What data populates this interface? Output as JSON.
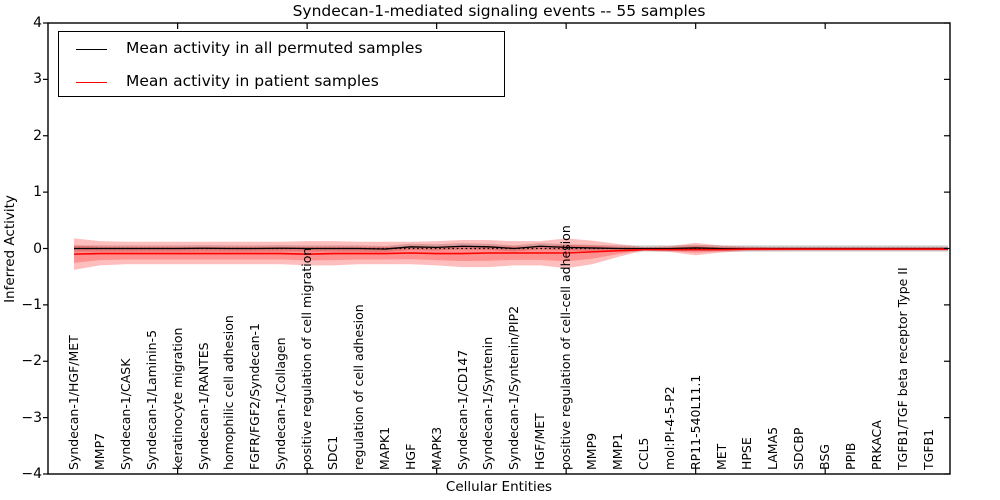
{
  "chart_data": {
    "type": "line",
    "title": "Syndecan-1-mediated signaling events -- 55 samples",
    "xlabel": "Cellular Entities",
    "ylabel": "Inferred Activity",
    "ylim": [
      -4,
      4
    ],
    "ytick_values": [
      4,
      3,
      2,
      1,
      0,
      -1,
      -2,
      -3,
      -4
    ],
    "ytick_labels": [
      "4",
      "3",
      "2",
      "1",
      "0",
      "−1",
      "−2",
      "−3",
      "−4"
    ],
    "grid": false,
    "legend_position": "upper left",
    "categories": [
      "Syndecan-1/HGF/MET",
      "MMP7",
      "Syndecan-1/CASK",
      "Syndecan-1/Laminin-5",
      "keratinocyte migration",
      "Syndecan-1/RANTES",
      "homophilic cell adhesion",
      "FGFR/FGF2/Syndecan-1",
      "Syndecan-1/Collagen",
      "positive regulation of cell migration",
      "SDC1",
      "regulation of cell adhesion",
      "MAPK1",
      "HGF",
      "MAPK3",
      "Syndecan-1/CD147",
      "Syndecan-1/Syntenin",
      "Syndecan-1/Syntenin/PIP2",
      "HGF/MET",
      "positive regulation of cell-cell adhesion",
      "MMP9",
      "MMP1",
      "CCL5",
      "mol:PI-4-5-P2",
      "RP11-540L11.1",
      "MET",
      "HPSE",
      "LAMA5",
      "SDCBP",
      "BSG",
      "PPIB",
      "PRKACA",
      "TGFB1/TGF beta receptor Type II",
      "TGFB1"
    ],
    "series": [
      {
        "name": "Mean activity in all permuted samples",
        "color": "#000000",
        "values": [
          0,
          0,
          0,
          0,
          0,
          0.005,
          0,
          0,
          0.005,
          0,
          0,
          0,
          -0.01,
          0.03,
          0.02,
          0.04,
          0.03,
          0,
          0.04,
          0.02,
          0.01,
          0,
          0,
          0,
          0.01,
          0,
          0,
          0,
          0,
          0,
          0,
          0,
          0,
          0
        ]
      },
      {
        "name": "Mean activity in patient samples",
        "color": "#ff0000",
        "values": [
          -0.1,
          -0.09,
          -0.09,
          -0.09,
          -0.09,
          -0.09,
          -0.09,
          -0.09,
          -0.09,
          -0.1,
          -0.09,
          -0.09,
          -0.09,
          -0.08,
          -0.09,
          -0.09,
          -0.08,
          -0.08,
          -0.08,
          -0.08,
          -0.06,
          -0.04,
          -0.02,
          -0.02,
          -0.02,
          -0.02,
          -0.01,
          -0.01,
          -0.01,
          -0.01,
          -0.01,
          -0.01,
          -0.01,
          -0.01
        ]
      }
    ],
    "bands": [
      {
        "name": "patient std band",
        "color_rgba": "rgba(255,40,40,0.30)",
        "upper": [
          0.18,
          0.13,
          0.12,
          0.12,
          0.12,
          0.12,
          0.12,
          0.12,
          0.12,
          0.13,
          0.13,
          0.12,
          0.12,
          0.12,
          0.13,
          0.15,
          0.15,
          0.13,
          0.13,
          0.18,
          0.14,
          0.08,
          0.025,
          0.04,
          0.1,
          0.05,
          0.03,
          0.025,
          0.025,
          0.025,
          0.025,
          0.025,
          0.025,
          0.025
        ],
        "lower": [
          -0.38,
          -0.3,
          -0.28,
          -0.28,
          -0.28,
          -0.28,
          -0.28,
          -0.28,
          -0.28,
          -0.3,
          -0.3,
          -0.28,
          -0.28,
          -0.28,
          -0.3,
          -0.33,
          -0.33,
          -0.3,
          -0.3,
          -0.35,
          -0.28,
          -0.15,
          -0.035,
          -0.06,
          -0.12,
          -0.07,
          -0.045,
          -0.04,
          -0.035,
          -0.035,
          -0.035,
          -0.035,
          -0.035,
          -0.035
        ]
      },
      {
        "name": "permuted std band",
        "color_rgba": "rgba(130,130,130,0.40)",
        "half_width": 0.055
      }
    ],
    "zero_line": {
      "value": 0,
      "style": "dotted",
      "color": "#000000"
    },
    "xtick_mark_indices": [
      4,
      9,
      14,
      19,
      24,
      29
    ]
  }
}
